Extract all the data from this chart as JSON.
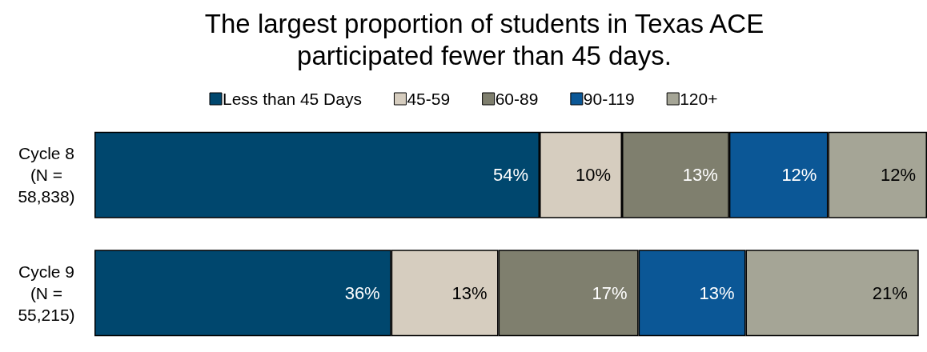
{
  "chart_data": {
    "type": "bar",
    "orientation": "horizontal",
    "stacked": true,
    "title": "The largest proportion of students in Texas ACE\nparticipated fewer than 45 days.",
    "categories": [
      "Cycle 8\n(N =\n58,838)",
      "Cycle 9\n(N =\n55,215)"
    ],
    "series": [
      {
        "name": "Less than 45 Days",
        "color": "#00476e",
        "values": [
          54,
          36
        ],
        "value_labels": [
          "54%",
          "36%"
        ]
      },
      {
        "name": "45-59",
        "color": "#d6cdbf",
        "values": [
          10,
          13
        ],
        "value_labels": [
          "10%",
          "13%"
        ]
      },
      {
        "name": "60-89",
        "color": "#7f7f6e",
        "values": [
          13,
          17
        ],
        "value_labels": [
          "13%",
          "17%"
        ]
      },
      {
        "name": "90-119",
        "color": "#0b5796",
        "values": [
          12,
          13
        ],
        "value_labels": [
          "12%",
          "13%"
        ]
      },
      {
        "name": "120+",
        "color": "#a5a596",
        "values": [
          12,
          21
        ],
        "value_labels": [
          "12%",
          "21%"
        ]
      }
    ],
    "legend": "top"
  }
}
